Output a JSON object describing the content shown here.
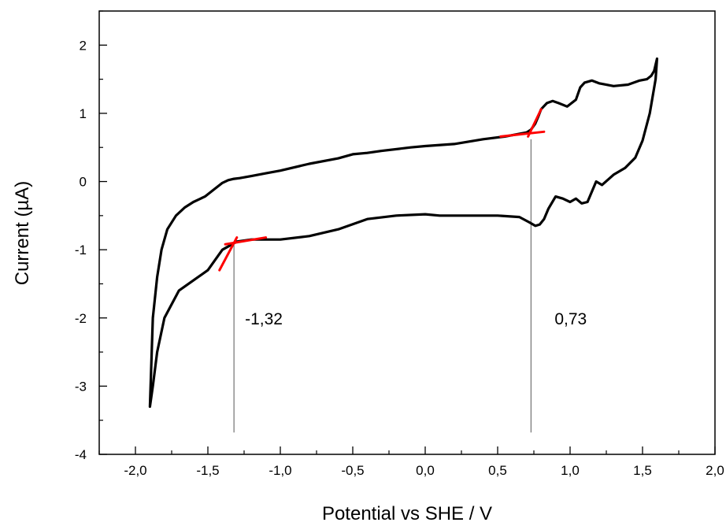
{
  "chart_data": {
    "type": "line",
    "title": "",
    "xlabel": "Potential vs SHE / V",
    "ylabel": "Current (µA)",
    "xlim": [
      -2.25,
      2.0
    ],
    "ylim": [
      -4,
      2.5
    ],
    "xticks": [
      -2.0,
      -1.5,
      -1.0,
      -0.5,
      0.0,
      0.5,
      1.0,
      1.5,
      2.0
    ],
    "xtick_labels": [
      "-2,0",
      "-1,5",
      "-1,0",
      "-0,5",
      "0,0",
      "0,5",
      "1,0",
      "1,5",
      "2,0"
    ],
    "yticks": [
      -4,
      -3,
      -2,
      -1,
      0,
      1,
      2
    ],
    "ytick_labels": [
      "-4",
      "-3",
      "-2",
      "-1",
      "0",
      "1",
      "2"
    ],
    "grid": false,
    "legend": "none",
    "series": [
      {
        "color": "#000000",
        "x": [
          1.6,
          1.59,
          1.55,
          1.5,
          1.45,
          1.38,
          1.3,
          1.22,
          1.18,
          1.15,
          1.12,
          1.08,
          1.04,
          1.0,
          0.95,
          0.9,
          0.85,
          0.82,
          0.79,
          0.76,
          0.72,
          0.65,
          0.5,
          0.3,
          0.1,
          0.0,
          -0.2,
          -0.4,
          -0.6,
          -0.8,
          -1.0,
          -1.2,
          -1.3,
          -1.4,
          -1.5,
          -1.6,
          -1.7,
          -1.8,
          -1.85,
          -1.88,
          -1.9,
          -1.88,
          -1.85,
          -1.82,
          -1.78,
          -1.72,
          -1.66,
          -1.6,
          -1.52,
          -1.46,
          -1.4,
          -1.36,
          -1.32,
          -1.28,
          -1.2,
          -1.1,
          -1.0,
          -0.8,
          -0.6,
          -0.5,
          -0.4,
          -0.3,
          -0.1,
          0.0,
          0.2,
          0.4,
          0.55,
          0.65,
          0.7,
          0.73,
          0.76,
          0.78,
          0.8,
          0.84,
          0.88,
          0.92,
          0.98,
          1.04,
          1.07,
          1.1,
          1.15,
          1.2,
          1.3,
          1.4,
          1.48,
          1.53,
          1.56,
          1.58,
          1.6
        ],
        "y": [
          1.8,
          1.5,
          1.0,
          0.6,
          0.35,
          0.2,
          0.1,
          -0.05,
          0.0,
          -0.15,
          -0.3,
          -0.32,
          -0.25,
          -0.3,
          -0.25,
          -0.22,
          -0.4,
          -0.55,
          -0.63,
          -0.65,
          -0.6,
          -0.52,
          -0.5,
          -0.5,
          -0.5,
          -0.48,
          -0.5,
          -0.55,
          -0.7,
          -0.8,
          -0.85,
          -0.85,
          -0.88,
          -1.0,
          -1.3,
          -1.45,
          -1.6,
          -2.0,
          -2.5,
          -3.0,
          -3.3,
          -2.0,
          -1.4,
          -1.0,
          -0.7,
          -0.5,
          -0.38,
          -0.3,
          -0.22,
          -0.12,
          -0.02,
          0.02,
          0.04,
          0.05,
          0.08,
          0.12,
          0.16,
          0.26,
          0.34,
          0.4,
          0.42,
          0.45,
          0.5,
          0.52,
          0.55,
          0.62,
          0.66,
          0.7,
          0.72,
          0.76,
          0.85,
          0.95,
          1.06,
          1.15,
          1.18,
          1.15,
          1.1,
          1.2,
          1.38,
          1.45,
          1.48,
          1.44,
          1.4,
          1.42,
          1.48,
          1.5,
          1.55,
          1.62,
          1.8
        ]
      }
    ],
    "tangents": [
      {
        "color": "#ff0000",
        "x": [
          -1.42,
          -1.3
        ],
        "y": [
          -1.3,
          -0.82
        ]
      },
      {
        "color": "#ff0000",
        "x": [
          -1.38,
          -1.1
        ],
        "y": [
          -0.92,
          -0.82
        ]
      },
      {
        "color": "#ff0000",
        "x": [
          0.52,
          0.82
        ],
        "y": [
          0.66,
          0.73
        ]
      },
      {
        "color": "#ff0000",
        "x": [
          0.71,
          0.8
        ],
        "y": [
          0.66,
          1.06
        ]
      }
    ],
    "markers": [
      {
        "x": -1.32,
        "label": "-1,32"
      },
      {
        "x": 0.73,
        "label": "0,73"
      }
    ]
  }
}
